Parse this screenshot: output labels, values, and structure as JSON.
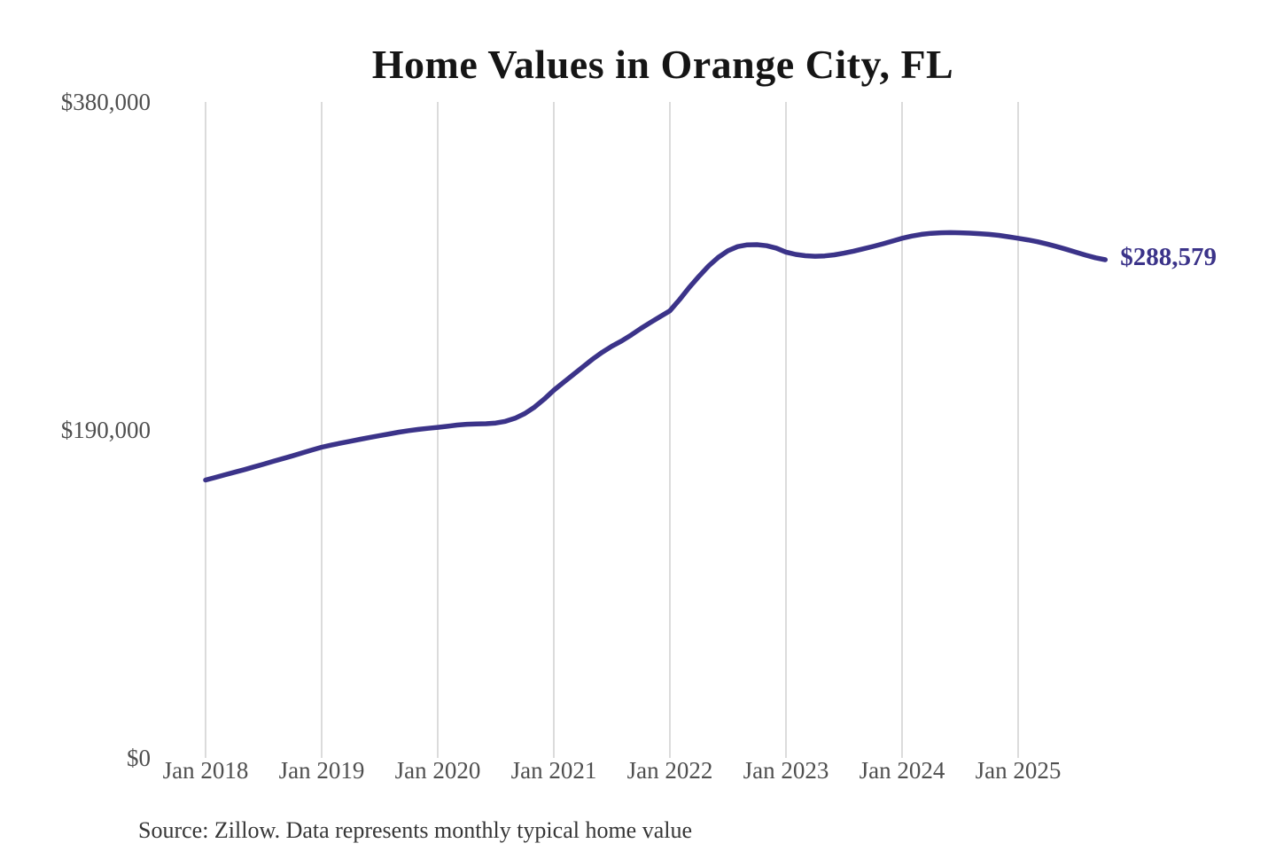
{
  "title": "Home Values in Orange City, FL",
  "source_note": "Source: Zillow. Data represents monthly typical home value",
  "colors": {
    "line": "#3b3389",
    "end_label": "#3b3389",
    "grid": "#cccccc",
    "axis_text": "#4f4f4f",
    "title_text": "#151515",
    "source_text": "#363636",
    "background": "#ffffff"
  },
  "chart_data": {
    "type": "line",
    "title": "Home Values in Orange City, FL",
    "unit": "USD",
    "x_interval": "monthly",
    "x_start": "Jan 2018",
    "x_end": "Oct 2025",
    "x_tick_labels": [
      "Jan 2018",
      "Jan 2019",
      "Jan 2020",
      "Jan 2021",
      "Jan 2022",
      "Jan 2023",
      "Jan 2024",
      "Jan 2025"
    ],
    "y_ticks": [
      0,
      190000,
      380000
    ],
    "y_tick_labels": [
      "$0",
      "$190,000",
      "$380,000"
    ],
    "ylim": [
      0,
      380000
    ],
    "grid": "vertical-only",
    "legend": "none",
    "end_label": "$288,579",
    "series": [
      {
        "name": "Typical home value",
        "final_value": 288579,
        "values": [
          161000,
          162500,
          164000,
          165500,
          167000,
          168600,
          170200,
          171800,
          173400,
          175000,
          176700,
          178400,
          180000,
          181200,
          182400,
          183500,
          184600,
          185700,
          186700,
          187700,
          188700,
          189600,
          190300,
          190900,
          191500,
          192100,
          192800,
          193300,
          193500,
          193600,
          194000,
          195000,
          196800,
          199500,
          203200,
          207800,
          213000,
          217500,
          222000,
          226500,
          231000,
          235000,
          238500,
          241500,
          245000,
          248800,
          252300,
          255700,
          259000,
          265500,
          272500,
          279000,
          285000,
          290000,
          293800,
          296200,
          297200,
          297300,
          296700,
          295300,
          293000,
          291700,
          290900,
          290600,
          290800,
          291400,
          292400,
          293600,
          294900,
          296300,
          297800,
          299400,
          301000,
          302300,
          303300,
          303900,
          304200,
          304300,
          304200,
          304000,
          303700,
          303300,
          302700,
          301900,
          301000,
          300100,
          299000,
          297700,
          296200,
          294600,
          292900,
          291200,
          289700,
          288579
        ]
      }
    ]
  }
}
